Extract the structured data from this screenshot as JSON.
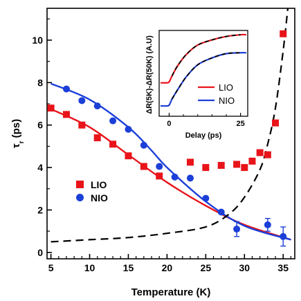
{
  "chart_data": [
    {
      "type": "scatter",
      "xlabel": "Temperature (K)",
      "ylabel_main": "τ",
      "ylabel_sub": "r",
      "ylabel_unit": " (ps)",
      "xlim": [
        4.5,
        36.5
      ],
      "ylim": [
        -0.3,
        11.5
      ],
      "x_ticks": [
        "5",
        "10",
        "15",
        "20",
        "25",
        "30",
        "35"
      ],
      "y_ticks": [
        "0",
        "2",
        "4",
        "6",
        "8",
        "10"
      ],
      "legend": {
        "position": "left-middle"
      },
      "series": [
        {
          "name": "LIO",
          "marker": "square",
          "color": "#e8141a",
          "points": [
            [
              5,
              6.8
            ],
            [
              7,
              6.5
            ],
            [
              9,
              6.0
            ],
            [
              11,
              5.4
            ],
            [
              13,
              5.1
            ],
            [
              15,
              4.55
            ],
            [
              17,
              4.05
            ],
            [
              19,
              3.6
            ],
            [
              23,
              4.25
            ],
            [
              25,
              4.0
            ],
            [
              27,
              4.1
            ],
            [
              29,
              4.15
            ],
            [
              30,
              4.0
            ],
            [
              31,
              4.3
            ],
            [
              32,
              4.7
            ],
            [
              33,
              4.6
            ],
            [
              34,
              6.1
            ],
            [
              35,
              10.3
            ]
          ]
        },
        {
          "name": "NIO",
          "marker": "circle",
          "color": "#1c3fd8",
          "points": [
            [
              7,
              7.7
            ],
            [
              9,
              7.15
            ],
            [
              11,
              6.9
            ],
            [
              13,
              6.2
            ],
            [
              15,
              5.8
            ],
            [
              17,
              5.05
            ],
            [
              19,
              4.05
            ],
            [
              21,
              3.55
            ],
            [
              23,
              3.5
            ],
            [
              25,
              2.55
            ],
            [
              27,
              1.9
            ],
            [
              29,
              1.1
            ],
            [
              33,
              1.3
            ],
            [
              35,
              0.75
            ]
          ],
          "error_bars": [
            {
              "x": 29,
              "low": 0.75,
              "high": 1.45
            },
            {
              "x": 33,
              "low": 1.0,
              "high": 1.6
            },
            {
              "x": 35,
              "low": 0.3,
              "high": 1.2
            }
          ]
        }
      ],
      "fit_curves": [
        {
          "series": "LIO",
          "color": "#e8141a",
          "style": "solid",
          "points": [
            [
              5,
              6.75
            ],
            [
              10,
              5.9
            ],
            [
              15,
              4.6
            ],
            [
              20,
              3.3
            ],
            [
              25,
              2.2
            ],
            [
              30,
              1.3
            ],
            [
              36,
              0.6
            ]
          ]
        },
        {
          "series": "NIO",
          "color": "#1c3fd8",
          "style": "solid",
          "points": [
            [
              5,
              7.95
            ],
            [
              10,
              7.2
            ],
            [
              15,
              5.9
            ],
            [
              18,
              4.8
            ],
            [
              20,
              4.0
            ],
            [
              25,
              2.4
            ],
            [
              30,
              1.25
            ],
            [
              36,
              0.6
            ]
          ]
        },
        {
          "color": "#000000",
          "style": "dashed",
          "points": [
            [
              5,
              0.5
            ],
            [
              10,
              0.6
            ],
            [
              15,
              0.7
            ],
            [
              20,
              0.9
            ],
            [
              25,
              1.2
            ],
            [
              28,
              1.8
            ],
            [
              30,
              2.6
            ],
            [
              32,
              3.9
            ],
            [
              33,
              5.1
            ],
            [
              34,
              6.8
            ],
            [
              35,
              9.5
            ],
            [
              35.6,
              11.5
            ]
          ]
        }
      ]
    },
    {
      "type": "line",
      "ylabel": "ΔR(5K)-ΔR(50K) (A.U)",
      "xlabel": "Delay (ps)",
      "xlim": [
        -3.5,
        27.5
      ],
      "ylim": [
        0,
        1
      ],
      "x_ticks": [
        "0",
        "25"
      ],
      "legend": {
        "position": "bottom-right",
        "entries": [
          "LIO",
          "NIO"
        ]
      },
      "series": [
        {
          "name": "LIO",
          "color": "#e8141a",
          "points": [
            [
              -3,
              0.39
            ],
            [
              -1,
              0.39
            ],
            [
              0,
              0.4
            ],
            [
              1,
              0.47
            ],
            [
              3,
              0.59
            ],
            [
              6,
              0.72
            ],
            [
              10,
              0.83
            ],
            [
              15,
              0.89
            ],
            [
              20,
              0.93
            ],
            [
              25,
              0.95
            ],
            [
              27,
              0.95
            ]
          ]
        },
        {
          "name": "NIO",
          "color": "#1c3fd8",
          "points": [
            [
              -3,
              0.12
            ],
            [
              -1,
              0.12
            ],
            [
              0,
              0.13
            ],
            [
              1,
              0.2
            ],
            [
              3,
              0.31
            ],
            [
              6,
              0.46
            ],
            [
              10,
              0.6
            ],
            [
              15,
              0.68
            ],
            [
              20,
              0.73
            ],
            [
              25,
              0.74
            ],
            [
              27,
              0.74
            ]
          ]
        }
      ],
      "fit_curves": [
        {
          "color": "#000000",
          "style": "dashed",
          "points": [
            [
              1,
              0.47
            ],
            [
              3,
              0.59
            ],
            [
              6,
              0.72
            ],
            [
              10,
              0.83
            ],
            [
              15,
              0.89
            ],
            [
              20,
              0.93
            ],
            [
              25,
              0.95
            ]
          ]
        },
        {
          "color": "#000000",
          "style": "dashed",
          "points": [
            [
              1,
              0.2
            ],
            [
              3,
              0.31
            ],
            [
              6,
              0.46
            ],
            [
              10,
              0.6
            ],
            [
              15,
              0.68
            ],
            [
              20,
              0.73
            ],
            [
              25,
              0.74
            ]
          ]
        }
      ]
    }
  ]
}
